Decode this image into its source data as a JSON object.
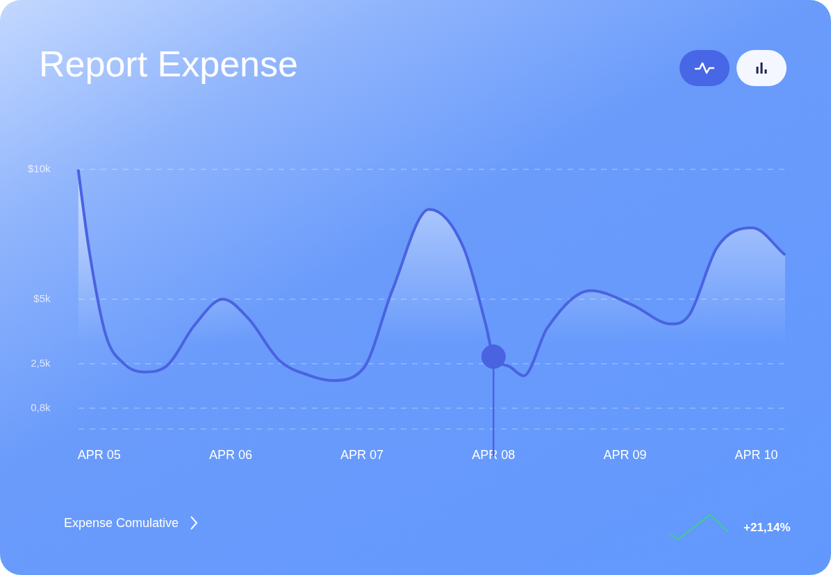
{
  "chart_data": {
    "type": "area",
    "title": "Report Expense",
    "grid": "y",
    "xlim": [
      "--04-04T20:10",
      "--04-10T05:15"
    ],
    "xticks": [
      {
        "value": "--04-05",
        "label": "APR 05"
      },
      {
        "value": "--04-06",
        "label": "APR 06"
      },
      {
        "value": "--04-07",
        "label": "APR 07"
      },
      {
        "value": "--04-08",
        "label": "APR 08"
      },
      {
        "value": "--04-09",
        "label": "APR 09"
      },
      {
        "value": "--04-10",
        "label": "APR 10"
      }
    ],
    "ylim": [
      0,
      10
    ],
    "ref_lines": [
      {
        "axis": "x",
        "value": "--04-08",
        "color": "#4a63e0"
      }
    ],
    "yticks": [
      {
        "value": 0,
        "label": null
      },
      {
        "value": 0.8,
        "label": "0,8k"
      },
      {
        "value": 2.5,
        "label": "2,5k"
      },
      {
        "value": 5,
        "label": "$5k"
      },
      {
        "value": 10,
        "label": "$10k"
      }
    ],
    "series": [
      {
        "type": "area",
        "color": "#4a63e0",
        "x": [
          "--04-04T20:10",
          "--04-04T22:05",
          "--04-05T01:10",
          "--04-05T04:35",
          "--04-05T08:10",
          "--04-05T12:15",
          "--04-05T17:30",
          "--04-05T22:35",
          "--04-06T03:10",
          "--04-06T08:55",
          "--04-06T14:10",
          "--04-06T18:40",
          "--04-07T00:15",
          "--04-07T05:30",
          "--04-07T12:15",
          "--04-07T18:30",
          "--04-07T22:35",
          "--04-08T00:00",
          "--04-08T02:50",
          "--04-08T05:30",
          "--04-08T09:50",
          "--04-08T17:45",
          "--04-09T01:25",
          "--04-09T08:25",
          "--04-09T11:45",
          "--04-09T16:50",
          "--04-09T23:15",
          "--04-10T05:15"
        ],
        "values": [
          10,
          7.0,
          3.64,
          2.5,
          2.19,
          2.41,
          4.02,
          5.0,
          4.27,
          2.63,
          2.07,
          1.86,
          2.33,
          5.33,
          8.46,
          7.0,
          4.02,
          2.78,
          2.41,
          2.04,
          3.89,
          5.33,
          4.77,
          4.04,
          4.39,
          7.0,
          7.75,
          6.7
        ]
      },
      {
        "type": "scatter",
        "color": "#4a63e0",
        "x": [
          "--04-08T00:00"
        ],
        "values": [
          2.78
        ]
      }
    ],
    "annotations": [
      "Expense Comulative",
      "+21,14%"
    ]
  }
}
